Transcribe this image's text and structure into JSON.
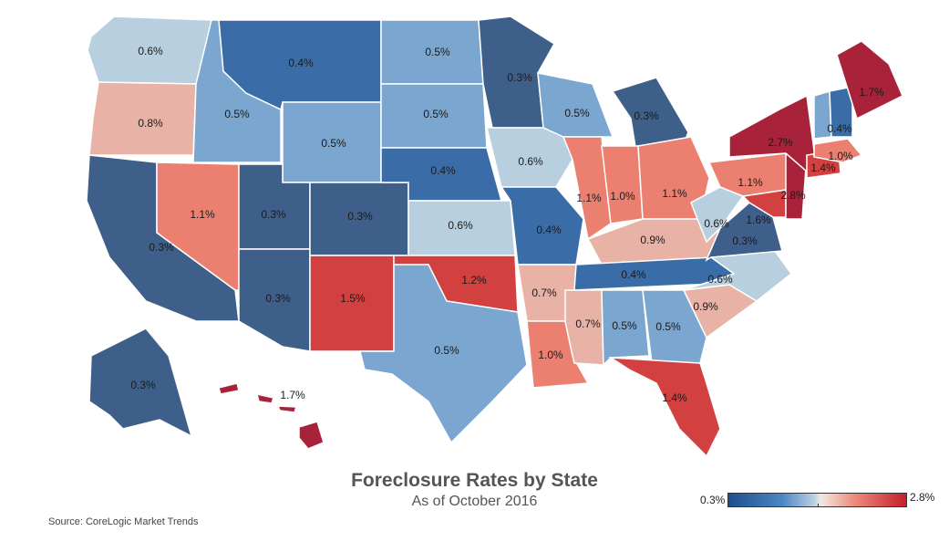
{
  "title": "Foreclosure Rates by State",
  "subtitle": "As of October 2016",
  "source": "Source: CoreLogic Market Trends",
  "legend": {
    "min_label": "0.3%",
    "max_label": "2.8%"
  },
  "colors": {
    "low": "#3e5f8a",
    "low_mid": "#4a86c5",
    "light_blue": "#7aa6d0",
    "pale_blue": "#b8cfe0",
    "pale_red": "#e8b3a6",
    "salmon": "#ec8070",
    "red": "#d24040",
    "dark_red": "#a8233a",
    "border": "#ffffff"
  },
  "chart_data": {
    "type": "choropleth",
    "value_unit": "%",
    "color_range": [
      0.3,
      2.8
    ],
    "states": [
      {
        "state": "WA",
        "label": "0.6%",
        "value": 0.6
      },
      {
        "state": "OR",
        "label": "0.8%",
        "value": 0.8
      },
      {
        "state": "CA",
        "label": "0.3%",
        "value": 0.3
      },
      {
        "state": "NV",
        "label": "1.1%",
        "value": 1.1
      },
      {
        "state": "ID",
        "label": "0.5%",
        "value": 0.5
      },
      {
        "state": "MT",
        "label": "0.4%",
        "value": 0.4
      },
      {
        "state": "WY",
        "label": "0.5%",
        "value": 0.5
      },
      {
        "state": "UT",
        "label": "0.3%",
        "value": 0.3
      },
      {
        "state": "AZ",
        "label": "0.3%",
        "value": 0.3
      },
      {
        "state": "CO",
        "label": "0.3%",
        "value": 0.3
      },
      {
        "state": "NM",
        "label": "1.5%",
        "value": 1.5
      },
      {
        "state": "ND",
        "label": "0.5%",
        "value": 0.5
      },
      {
        "state": "SD",
        "label": "0.5%",
        "value": 0.5
      },
      {
        "state": "NE",
        "label": "0.4%",
        "value": 0.4
      },
      {
        "state": "KS",
        "label": "0.6%",
        "value": 0.6
      },
      {
        "state": "OK",
        "label": "1.2%",
        "value": 1.2
      },
      {
        "state": "TX",
        "label": "0.5%",
        "value": 0.5
      },
      {
        "state": "MN",
        "label": "0.3%",
        "value": 0.3
      },
      {
        "state": "IA",
        "label": "0.6%",
        "value": 0.6
      },
      {
        "state": "MO",
        "label": "0.4%",
        "value": 0.4
      },
      {
        "state": "AR",
        "label": "0.7%",
        "value": 0.7
      },
      {
        "state": "LA",
        "label": "1.0%",
        "value": 1.0
      },
      {
        "state": "WI",
        "label": "0.5%",
        "value": 0.5
      },
      {
        "state": "IL",
        "label": "1.1%",
        "value": 1.1
      },
      {
        "state": "MI",
        "label": "0.3%",
        "value": 0.3
      },
      {
        "state": "IN",
        "label": "1.0%",
        "value": 1.0
      },
      {
        "state": "OH",
        "label": "1.1%",
        "value": 1.1
      },
      {
        "state": "KY",
        "label": "0.9%",
        "value": 0.9
      },
      {
        "state": "TN",
        "label": "0.4%",
        "value": 0.4
      },
      {
        "state": "MS",
        "label": "0.7%",
        "value": 0.7
      },
      {
        "state": "AL",
        "label": "0.5%",
        "value": 0.5
      },
      {
        "state": "GA",
        "label": "0.5%",
        "value": 0.5
      },
      {
        "state": "FL",
        "label": "1.4%",
        "value": 1.4
      },
      {
        "state": "SC",
        "label": "0.9%",
        "value": 0.9
      },
      {
        "state": "NC",
        "label": "0.6%",
        "value": 0.6
      },
      {
        "state": "VA",
        "label": "0.3%",
        "value": 0.3
      },
      {
        "state": "WV",
        "label": "0.6%",
        "value": 0.6
      },
      {
        "state": "MD",
        "label": "1.6%",
        "value": 1.6
      },
      {
        "state": "PA",
        "label": "1.1%",
        "value": 1.1
      },
      {
        "state": "NJ",
        "label": "2.8%",
        "value": 2.8
      },
      {
        "state": "NY",
        "label": "2.7%",
        "value": 2.7
      },
      {
        "state": "CT",
        "label": "1.4%",
        "value": 1.4
      },
      {
        "state": "MA",
        "label": "1.0%",
        "value": 1.0
      },
      {
        "state": "VT",
        "label": "",
        "value": null
      },
      {
        "state": "NH",
        "label": "0.4%",
        "value": 0.4
      },
      {
        "state": "ME",
        "label": "1.7%",
        "value": 1.7
      },
      {
        "state": "AK",
        "label": "0.3%",
        "value": 0.3
      },
      {
        "state": "HI",
        "label": "1.7%",
        "value": 1.7
      }
    ]
  }
}
